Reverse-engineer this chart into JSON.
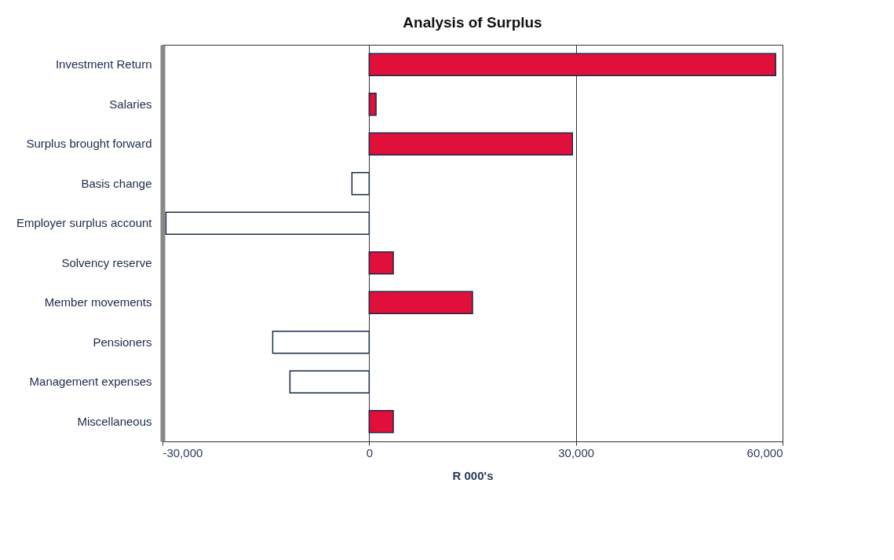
{
  "chart_data": {
    "type": "bar",
    "orientation": "horizontal",
    "title": "Analysis of Surplus",
    "xlabel": "R 000's",
    "categories": [
      "Investment Return",
      "Salaries",
      "Surplus brought forward",
      "Basis change",
      "Employer surplus account",
      "Solvency reserve",
      "Member movements",
      "Pensioners",
      "Management expenses",
      "Miscellaneous"
    ],
    "values": [
      59000,
      1000,
      29500,
      -2500,
      -29500,
      3500,
      15000,
      -14000,
      -11500,
      3500
    ],
    "colors": [
      "#e0103a",
      "#e0103a",
      "#e0103a",
      "#ffffff",
      "#ffffff",
      "#e0103a",
      "#e0103a",
      "#ffffff",
      "#ffffff",
      "#e0103a"
    ],
    "xlim": [
      -30000,
      60000
    ],
    "xticks": [
      {
        "value": -30000,
        "label": "-30,000"
      },
      0,
      {
        "value": 30000,
        "label": "30,000"
      },
      {
        "value": 60000,
        "label": "60,000"
      }
    ],
    "grid": "x"
  }
}
